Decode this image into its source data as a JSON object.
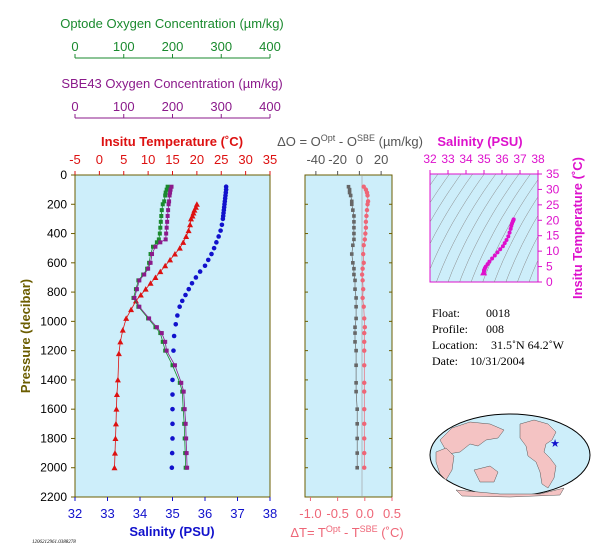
{
  "colors": {
    "optode": "#1a8a2e",
    "sbe": "#8b1a8b",
    "temperature": "#dd1111",
    "salinity": "#1111cc",
    "delta": "#ee6677",
    "salinity_ts": "#dd11cc",
    "olive": "#6b5d00",
    "panel_bg": "#cdeefa"
  },
  "top_axes": {
    "optode": {
      "label": "Optode Oxygen Concentration (µm/kg)",
      "ticks": [
        "0",
        "100",
        "200",
        "300",
        "400"
      ]
    },
    "sbe": {
      "label": "SBE43 Oxygen Concentration (µm/kg)",
      "ticks": [
        "0",
        "100",
        "200",
        "300",
        "400"
      ]
    }
  },
  "panel_labels": {
    "temp_axis": "Insitu Temperature (˚C)",
    "temp_ticks": [
      "-5",
      "0",
      "5",
      "10",
      "15",
      "20",
      "25",
      "30",
      "35"
    ],
    "pressure_axis": "Pressure (decibar)",
    "pressure_ticks": [
      "0",
      "200",
      "400",
      "600",
      "800",
      "1000",
      "1200",
      "1400",
      "1600",
      "1800",
      "2000",
      "2200"
    ],
    "sal_axis": "Salinity (PSU)",
    "sal_ticks": [
      "32",
      "33",
      "34",
      "35",
      "36",
      "37",
      "38"
    ],
    "delta_o_prefix": "ΔO = O",
    "delta_o_sup1": "Opt",
    "delta_o_mid": " - O",
    "delta_o_sup2": "SBE",
    "delta_o_units": " (µm/kg)",
    "delta_o_ticks": [
      "-40",
      "-20",
      "0",
      "20"
    ],
    "delta_t_prefix": "ΔT= T",
    "delta_t_sup1": "Opt",
    "delta_t_mid": " - T",
    "delta_t_sup2": "SBE",
    "delta_t_units": " (˚C)",
    "delta_t_ticks": [
      "-1.0",
      "-0.5",
      "0.0",
      "0.5"
    ],
    "ts_sal_axis": "Salinity (PSU)",
    "ts_sal_ticks": [
      "32",
      "33",
      "34",
      "35",
      "36",
      "37",
      "38"
    ],
    "ts_temp_axis": "Insitu Temperature (˚C)",
    "ts_temp_ticks": [
      "35",
      "30",
      "25",
      "20",
      "15",
      "10",
      "5",
      "0"
    ]
  },
  "info": {
    "float_label": "Float:",
    "float_value": "0018",
    "profile_label": "Profile:",
    "profile_value": "008",
    "location_label": "Location:",
    "location_value": "31.5˚N  64.2˚W",
    "date_label": "Date:",
    "date_value": "10/31/2004"
  },
  "footer_id": "1206212961.0388278",
  "chart_data": [
    {
      "type": "line",
      "title": "",
      "ylabel": "Pressure (decibar)",
      "ylim": [
        2200,
        0
      ],
      "series": [
        {
          "name": "Insitu Temperature (˚C)",
          "axis": "temperature",
          "xlim": [
            -5,
            35
          ],
          "points": [
            [
              20.0,
              200
            ],
            [
              19.8,
              220
            ],
            [
              19.5,
              240
            ],
            [
              19.3,
              260
            ],
            [
              19.1,
              280
            ],
            [
              18.8,
              300
            ],
            [
              18.6,
              340
            ],
            [
              18.3,
              380
            ],
            [
              17.8,
              420
            ],
            [
              17.2,
              460
            ],
            [
              16.5,
              500
            ],
            [
              15.5,
              540
            ],
            [
              14.5,
              580
            ],
            [
              13.5,
              620
            ],
            [
              12.5,
              660
            ],
            [
              11.5,
              700
            ],
            [
              10.5,
              740
            ],
            [
              9.5,
              780
            ],
            [
              8.5,
              820
            ],
            [
              7.5,
              860
            ],
            [
              6.5,
              920
            ],
            [
              5.5,
              980
            ],
            [
              4.8,
              1060
            ],
            [
              4.3,
              1140
            ],
            [
              4.0,
              1220
            ],
            [
              3.8,
              1400
            ],
            [
              3.6,
              1500
            ],
            [
              3.5,
              1600
            ],
            [
              3.4,
              1700
            ],
            [
              3.3,
              1800
            ],
            [
              3.2,
              1900
            ],
            [
              3.1,
              2000
            ]
          ]
        },
        {
          "name": "Salinity (PSU)",
          "axis": "salinity",
          "xlim": [
            32,
            38
          ],
          "points": [
            [
              36.65,
              80
            ],
            [
              36.65,
              100
            ],
            [
              36.64,
              120
            ],
            [
              36.63,
              140
            ],
            [
              36.62,
              160
            ],
            [
              36.61,
              180
            ],
            [
              36.6,
              200
            ],
            [
              36.59,
              220
            ],
            [
              36.58,
              240
            ],
            [
              36.57,
              260
            ],
            [
              36.56,
              280
            ],
            [
              36.55,
              300
            ],
            [
              36.52,
              340
            ],
            [
              36.48,
              380
            ],
            [
              36.42,
              420
            ],
            [
              36.35,
              460
            ],
            [
              36.28,
              500
            ],
            [
              36.2,
              540
            ],
            [
              36.1,
              580
            ],
            [
              36.0,
              620
            ],
            [
              35.85,
              660
            ],
            [
              35.72,
              700
            ],
            [
              35.6,
              740
            ],
            [
              35.5,
              780
            ],
            [
              35.4,
              820
            ],
            [
              35.3,
              860
            ],
            [
              35.22,
              900
            ],
            [
              35.15,
              960
            ],
            [
              35.1,
              1020
            ],
            [
              35.05,
              1100
            ],
            [
              35.03,
              1200
            ],
            [
              35.0,
              1400
            ],
            [
              35.0,
              1500
            ],
            [
              35.0,
              1600
            ],
            [
              35.0,
              1700
            ],
            [
              35.0,
              1800
            ],
            [
              34.99,
              1900
            ],
            [
              34.98,
              2000
            ]
          ]
        },
        {
          "name": "Optode Oxygen Concentration (µm/kg)",
          "axis": "oxygen",
          "xlim": [
            0,
            400
          ],
          "points": [
            [
              190,
              80
            ],
            [
              188,
              100
            ],
            [
              186,
              120
            ],
            [
              185,
              140
            ],
            [
              183,
              180
            ],
            [
              180,
              200
            ],
            [
              178,
              240
            ],
            [
              177,
              280
            ],
            [
              176,
              320
            ],
            [
              175,
              360
            ],
            [
              174,
              400
            ],
            [
              172,
              440
            ],
            [
              168,
              460
            ],
            [
              160,
              490
            ],
            [
              155,
              540
            ],
            [
              152,
              600
            ],
            [
              148,
              640
            ],
            [
              140,
              680
            ],
            [
              130,
              720
            ],
            [
              125,
              780
            ],
            [
              120,
              840
            ],
            [
              130,
              900
            ],
            [
              150,
              980
            ],
            [
              165,
              1040
            ],
            [
              175,
              1080
            ],
            [
              180,
              1140
            ],
            [
              185,
              1200
            ],
            [
              200,
              1300
            ],
            [
              215,
              1420
            ],
            [
              220,
              1480
            ],
            [
              222,
              1600
            ],
            [
              224,
              1700
            ],
            [
              225,
              1800
            ],
            [
              226,
              1900
            ],
            [
              227,
              2000
            ]
          ]
        },
        {
          "name": "SBE43 Oxygen Concentration (µm/kg)",
          "axis": "oxygen",
          "xlim": [
            0,
            400
          ],
          "points": [
            [
              198,
              80
            ],
            [
              196,
              100
            ],
            [
              195,
              120
            ],
            [
              194,
              140
            ],
            [
              193,
              180
            ],
            [
              192,
              200
            ],
            [
              191,
              240
            ],
            [
              190,
              280
            ],
            [
              189,
              320
            ],
            [
              188,
              360
            ],
            [
              187,
              400
            ],
            [
              186,
              440
            ],
            [
              175,
              460
            ],
            [
              165,
              490
            ],
            [
              158,
              540
            ],
            [
              155,
              600
            ],
            [
              150,
              640
            ],
            [
              142,
              680
            ],
            [
              132,
              720
            ],
            [
              127,
              780
            ],
            [
              122,
              840
            ],
            [
              132,
              900
            ],
            [
              152,
              980
            ],
            [
              168,
              1040
            ],
            [
              178,
              1080
            ],
            [
              185,
              1140
            ],
            [
              188,
              1200
            ],
            [
              205,
              1300
            ],
            [
              218,
              1420
            ],
            [
              223,
              1480
            ],
            [
              225,
              1600
            ],
            [
              227,
              1700
            ],
            [
              228,
              1800
            ],
            [
              229,
              1900
            ],
            [
              230,
              2000
            ]
          ]
        }
      ]
    },
    {
      "type": "scatter",
      "title": "",
      "ylabel": "Pressure (decibar)",
      "ylim": [
        2200,
        0
      ],
      "series": [
        {
          "name": "ΔO = OOpt - OSBE (µm/kg)",
          "axis": "delta_o",
          "xlim": [
            -50,
            30
          ],
          "points": [
            [
              -10,
              80
            ],
            [
              -9,
              100
            ],
            [
              -9,
              120
            ],
            [
              -8,
              140
            ],
            [
              -7,
              180
            ],
            [
              -7,
              200
            ],
            [
              -6,
              240
            ],
            [
              -5,
              280
            ],
            [
              -5,
              320
            ],
            [
              -5,
              360
            ],
            [
              -5,
              400
            ],
            [
              -5,
              440
            ],
            [
              -6,
              480
            ],
            [
              -7,
              540
            ],
            [
              -6,
              600
            ],
            [
              -5,
              640
            ],
            [
              -5,
              680
            ],
            [
              -4,
              720
            ],
            [
              -4,
              780
            ],
            [
              -3,
              840
            ],
            [
              -3,
              900
            ],
            [
              -3,
              980
            ],
            [
              -4,
              1040
            ],
            [
              -4,
              1080
            ],
            [
              -4,
              1140
            ],
            [
              -3,
              1200
            ],
            [
              -3,
              1300
            ],
            [
              -3,
              1420
            ],
            [
              -3,
              1480
            ],
            [
              -2,
              1600
            ],
            [
              -2,
              1700
            ],
            [
              -2,
              1800
            ],
            [
              -2,
              1900
            ],
            [
              -2,
              2000
            ]
          ]
        },
        {
          "name": "ΔT= TOpt - TSBE (˚C)",
          "axis": "delta_t",
          "xlim": [
            -1.1,
            0.5
          ],
          "points": [
            [
              -0.02,
              80
            ],
            [
              0.02,
              100
            ],
            [
              0.04,
              120
            ],
            [
              0.05,
              140
            ],
            [
              0.06,
              180
            ],
            [
              0.05,
              200
            ],
            [
              0.04,
              240
            ],
            [
              0.03,
              280
            ],
            [
              0.02,
              320
            ],
            [
              0.02,
              360
            ],
            [
              0.01,
              400
            ],
            [
              0.0,
              440
            ],
            [
              -0.02,
              480
            ],
            [
              -0.03,
              540
            ],
            [
              -0.02,
              600
            ],
            [
              -0.04,
              640
            ],
            [
              -0.05,
              680
            ],
            [
              -0.04,
              720
            ],
            [
              -0.03,
              780
            ],
            [
              -0.04,
              840
            ],
            [
              -0.02,
              900
            ],
            [
              -0.01,
              980
            ],
            [
              0.0,
              1040
            ],
            [
              -0.01,
              1080
            ],
            [
              -0.01,
              1140
            ],
            [
              -0.01,
              1200
            ],
            [
              -0.01,
              1300
            ],
            [
              -0.01,
              1420
            ],
            [
              -0.01,
              1480
            ],
            [
              -0.01,
              1600
            ],
            [
              -0.01,
              1700
            ],
            [
              -0.01,
              1800
            ],
            [
              -0.01,
              1900
            ],
            [
              -0.01,
              2000
            ]
          ]
        }
      ]
    },
    {
      "type": "scatter",
      "title": "",
      "xlabel": "Salinity (PSU)",
      "ylabel": "Insitu Temperature (˚C)",
      "xlim": [
        32,
        38
      ],
      "ylim": [
        0,
        35
      ],
      "series": [
        {
          "name": "T-S",
          "points": [
            [
              34.98,
              3.1
            ],
            [
              35.0,
              3.4
            ],
            [
              35.0,
              3.8
            ],
            [
              35.03,
              4.0
            ],
            [
              35.05,
              4.5
            ],
            [
              35.1,
              5.0
            ],
            [
              35.2,
              5.8
            ],
            [
              35.3,
              6.6
            ],
            [
              35.45,
              7.6
            ],
            [
              35.6,
              8.6
            ],
            [
              35.75,
              9.6
            ],
            [
              35.9,
              10.6
            ],
            [
              36.05,
              11.6
            ],
            [
              36.15,
              12.6
            ],
            [
              36.25,
              13.6
            ],
            [
              36.35,
              14.8
            ],
            [
              36.42,
              16.0
            ],
            [
              36.48,
              17.2
            ],
            [
              36.52,
              18.2
            ],
            [
              36.56,
              19.0
            ],
            [
              36.6,
              19.6
            ],
            [
              36.63,
              20.0
            ],
            [
              36.65,
              20.3
            ]
          ]
        }
      ]
    }
  ]
}
